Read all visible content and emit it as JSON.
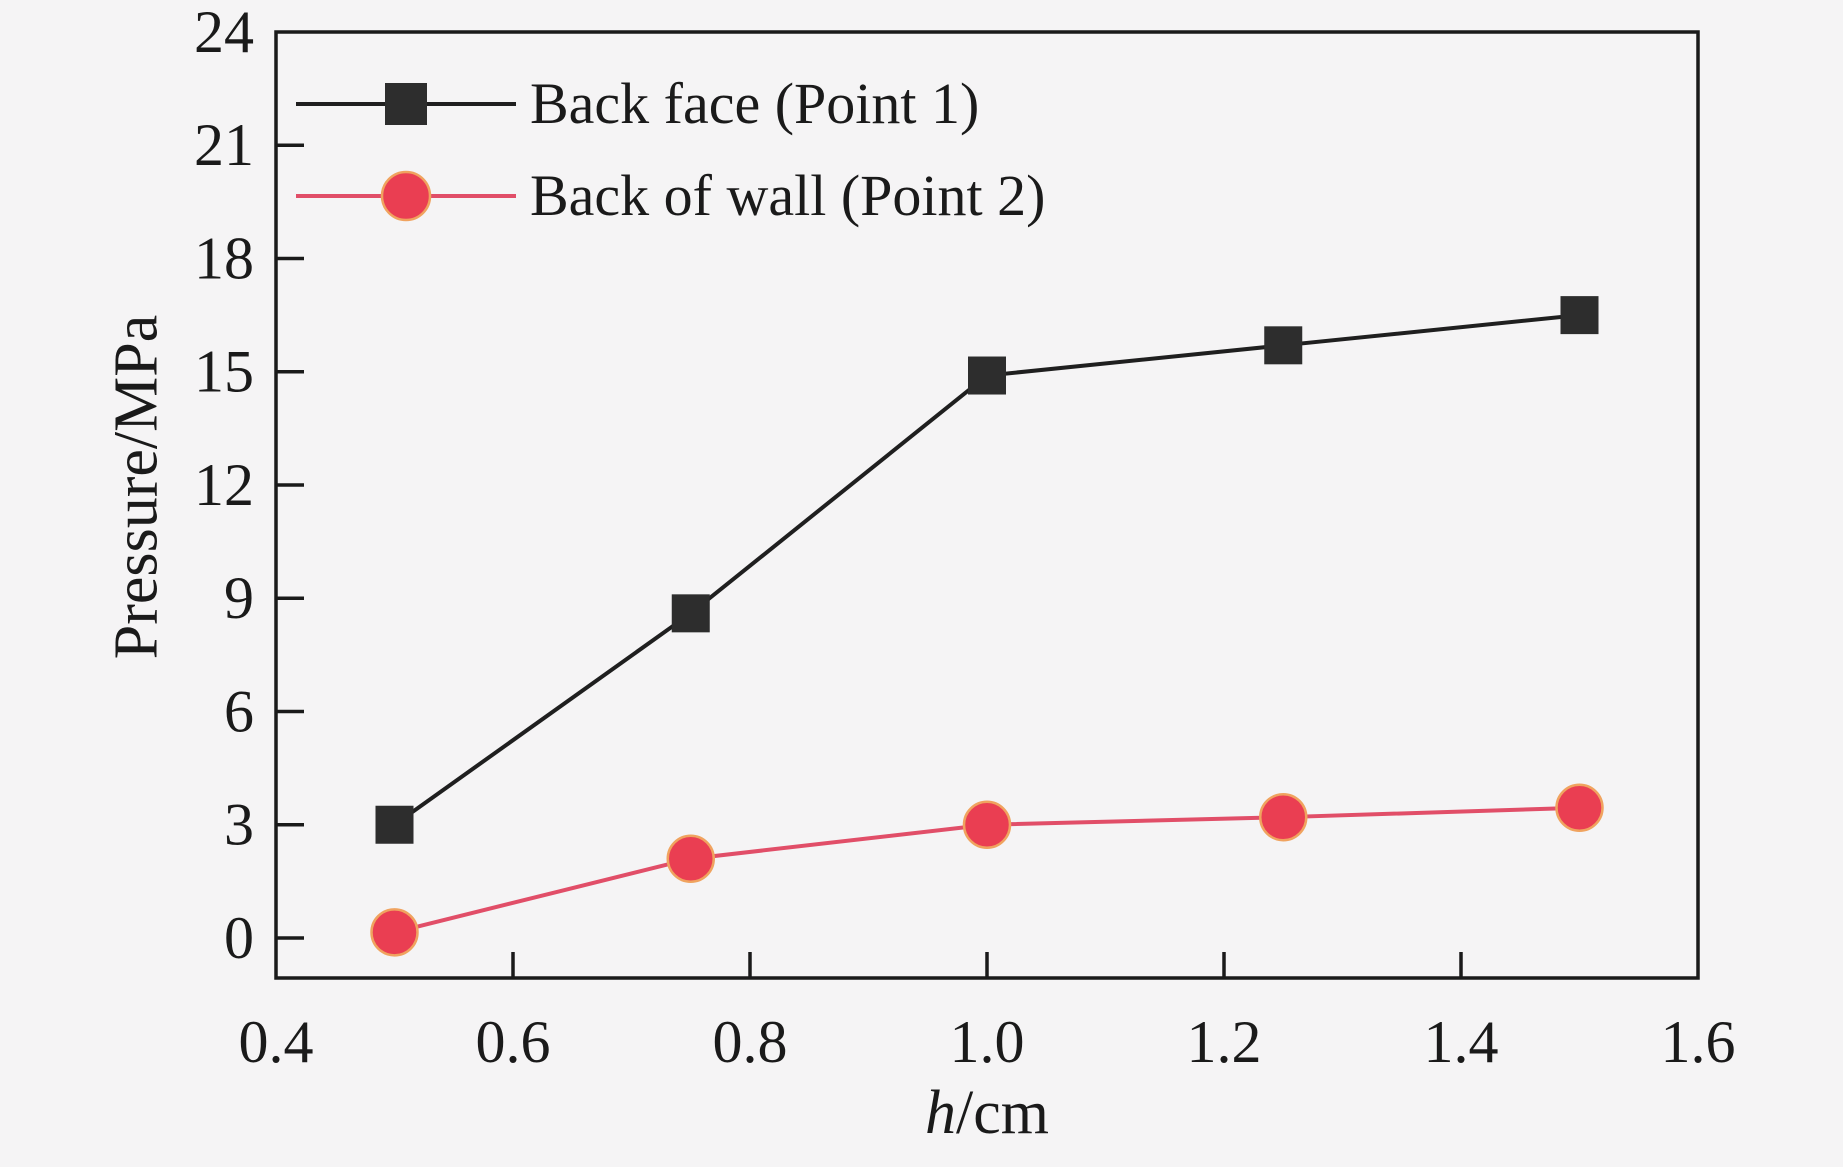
{
  "figure": {
    "background": "#f5f4f5"
  },
  "chart_data": {
    "type": "line",
    "title": "",
    "xlabel": "h/cm",
    "xlabel_var": "h",
    "xlabel_unit": "/cm",
    "ylabel": "Pressure/MPa",
    "x": [
      0.5,
      0.75,
      1.0,
      1.25,
      1.5
    ],
    "series": [
      {
        "name": "Back face (Point 1)",
        "marker": "square",
        "line_color": "#1f1f1f",
        "marker_color": "#2d2d2d",
        "values": [
          3.0,
          8.6,
          14.9,
          15.7,
          16.5
        ]
      },
      {
        "name": "Back of wall (Point 2)",
        "marker": "circle",
        "line_color": "#e14e68",
        "marker_color": "#ea3e52",
        "marker_edge_color": "#f0a35f",
        "values": [
          0.15,
          2.1,
          3.0,
          3.2,
          3.45
        ]
      }
    ],
    "xlim": [
      0.4,
      1.6
    ],
    "ylim": [
      -1.06,
      24
    ],
    "xticks": [
      0.4,
      0.6,
      0.8,
      1.0,
      1.2,
      1.4,
      1.6
    ],
    "xtick_labels": [
      "0.4",
      "0.6",
      "0.8",
      "1.0",
      "1.2",
      "1.4",
      "1.6"
    ],
    "yticks": [
      0,
      3,
      6,
      9,
      12,
      15,
      18,
      21,
      24
    ],
    "ytick_labels": [
      "0",
      "3",
      "6",
      "9",
      "12",
      "15",
      "18",
      "21",
      "24"
    ],
    "grid": false,
    "legend_position": "top-left",
    "frame_color": "#1a1a1a",
    "tick_color": "#1a1a1a",
    "text_color": "#1a1a1a"
  }
}
